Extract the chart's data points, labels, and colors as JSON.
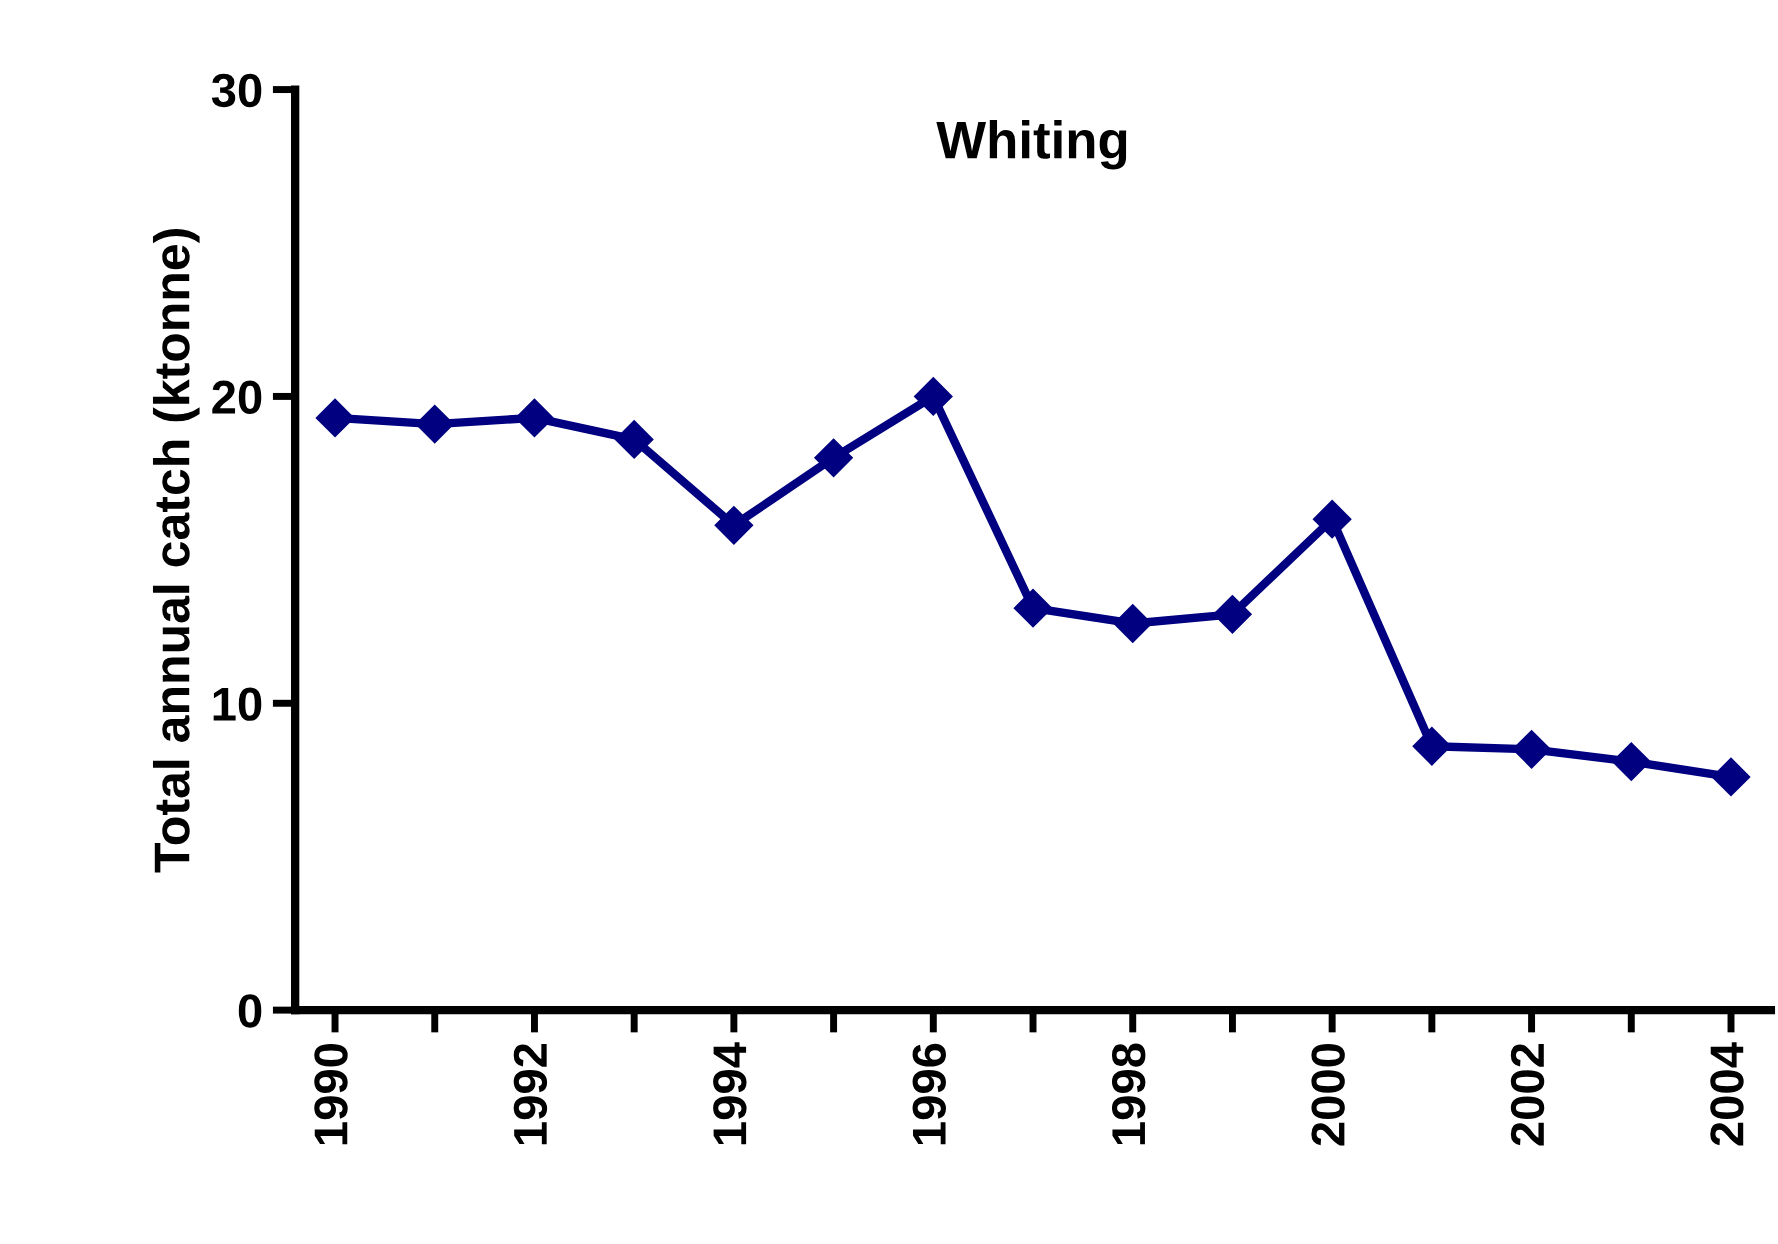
{
  "chart_data": {
    "type": "line",
    "title": "Whiting",
    "ylabel": "Total annual catch (ktonne)",
    "x": [
      1990,
      1991,
      1992,
      1993,
      1994,
      1995,
      1996,
      1997,
      1998,
      1999,
      2000,
      2001,
      2002,
      2003,
      2004
    ],
    "series": [
      {
        "color": "#000080",
        "values": [
          19.3,
          19.1,
          19.3,
          18.6,
          15.8,
          18.0,
          20.0,
          13.1,
          12.6,
          12.9,
          16.0,
          8.6,
          8.5,
          8.1,
          7.6
        ]
      }
    ],
    "xlim": [
      1989.6,
      2004.4
    ],
    "xticks": [
      1990,
      {
        "value": 1991,
        "label": null
      },
      1992,
      {
        "value": 1993,
        "label": null
      },
      1994,
      {
        "value": 1995,
        "label": null
      },
      1996,
      {
        "value": 1997,
        "label": null
      },
      1998,
      {
        "value": 1999,
        "label": null
      },
      2000,
      {
        "value": 2001,
        "label": null
      },
      2002,
      {
        "value": 2003,
        "label": null
      },
      2004
    ],
    "ylim": [
      0,
      30
    ],
    "yticks": [
      0,
      10,
      20,
      30
    ],
    "marker": "diamond",
    "line_style": "solid",
    "grid": false,
    "legend": false
  }
}
